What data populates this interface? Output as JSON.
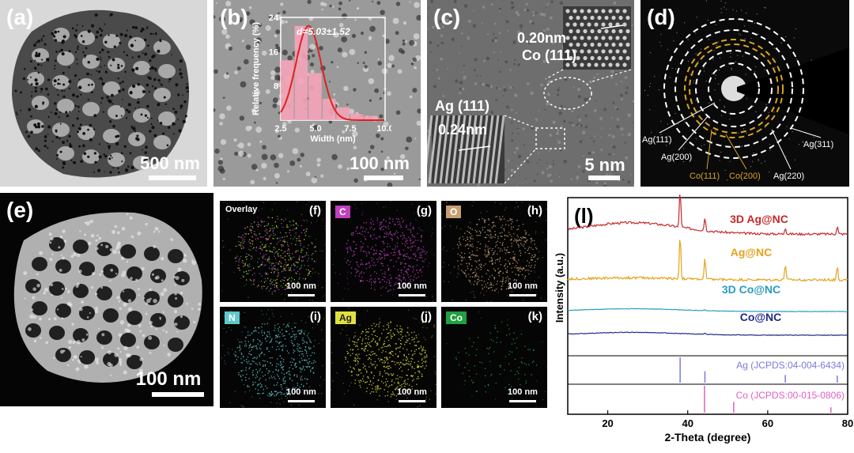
{
  "panels": {
    "a": {
      "label": "(a)",
      "scale": "500 nm"
    },
    "b": {
      "label": "(b)",
      "scale": "100 nm"
    },
    "c": {
      "label": "(c)",
      "scale": "5 nm",
      "co_spacing": "0.20nm",
      "co_plane": "Co (111)",
      "ag_plane": "Ag (111)",
      "ag_spacing": "0.24nm"
    },
    "d": {
      "label": "(d)"
    },
    "e": {
      "label": "(e)",
      "scale": "100 nm"
    },
    "f": {
      "label": "(f)",
      "tag": "Overlay",
      "scale": "100 nm"
    },
    "g": {
      "label": "(g)",
      "tag": "C",
      "scale": "100 nm"
    },
    "h": {
      "label": "(h)",
      "tag": "O",
      "scale": "100 nm"
    },
    "i": {
      "label": "(i)",
      "tag": "N",
      "scale": "100 nm"
    },
    "j": {
      "label": "(j)",
      "tag": "Ag",
      "scale": "100 nm"
    },
    "k": {
      "label": "(k)",
      "tag": "Co",
      "scale": "100 nm"
    },
    "l": {
      "label": "(l)"
    }
  },
  "diffraction_labels": [
    "Ag(111)",
    "Ag(200)",
    "Co(111)",
    "Co(200)",
    "Ag(220)",
    "Ag(311)"
  ],
  "colors": {
    "ag_ring": "#ffffff",
    "co_ring": "#d9a520",
    "C": "#c040c0",
    "O": "#c8a070",
    "N": "#5fc8c8",
    "Ag": "#e0e040",
    "Co": "#20a040"
  },
  "chart_data": [
    {
      "type": "bar",
      "title": "",
      "annotation": "d=5.03±1.52",
      "xlabel": "Width (nm)",
      "ylabel": "Relative frequency (%)",
      "x_ticks": [
        "2.5",
        "5.0",
        "7.5",
        "10.0"
      ],
      "y_ticks": [
        "0",
        "8",
        "16",
        "24"
      ],
      "xlim": [
        2.5,
        10.0
      ],
      "ylim": [
        0,
        24
      ],
      "bins": [
        3.0,
        4.0,
        5.0,
        6.0,
        7.0,
        8.0,
        9.0
      ],
      "bin_width": 1.0,
      "values": [
        14,
        22,
        11,
        5,
        3,
        1.5,
        1
      ],
      "fit": "gaussian",
      "fit_mean": 4.5,
      "fit_sigma": 0.9,
      "fit_peak": 22
    },
    {
      "type": "line",
      "xlabel": "2-Theta (degree)",
      "ylabel": "Intensity (a.u.)",
      "x_ticks": [
        "20",
        "40",
        "60",
        "80"
      ],
      "xlim": [
        10,
        80
      ],
      "series": [
        {
          "name": "3D Ag@NC",
          "color": "#c8282a",
          "peaks": [
            [
              38.1,
              1.0
            ],
            [
              44.3,
              0.35
            ],
            [
              64.4,
              0.18
            ],
            [
              77.4,
              0.2
            ]
          ],
          "broad": 0.3
        },
        {
          "name": "Ag@NC",
          "color": "#e6a21a",
          "peaks": [
            [
              38.1,
              1.1
            ],
            [
              44.3,
              0.5
            ],
            [
              64.4,
              0.4
            ],
            [
              77.4,
              0.35
            ]
          ],
          "broad": 0.05
        },
        {
          "name": "3D Co@NC",
          "color": "#2a9cc0",
          "peaks": [
            [
              44.3,
              0.12
            ]
          ],
          "broad": 0.35
        },
        {
          "name": "Co@NC",
          "color": "#1e2a88",
          "peaks": [
            [
              44.3,
              0.15
            ]
          ],
          "broad": 0.3
        }
      ],
      "references": [
        {
          "name": "Ag (JCPDS:04-004-6434)",
          "color": "#7a7ae0",
          "lines": [
            [
              38.1,
              1.0
            ],
            [
              44.3,
              0.45
            ],
            [
              64.4,
              0.3
            ],
            [
              77.4,
              0.28
            ]
          ]
        },
        {
          "name": "Co (JCPDS:00-015-0806)",
          "color": "#e060c0",
          "lines": [
            [
              44.2,
              1.0
            ],
            [
              51.5,
              0.4
            ],
            [
              75.8,
              0.2
            ]
          ]
        }
      ]
    }
  ]
}
